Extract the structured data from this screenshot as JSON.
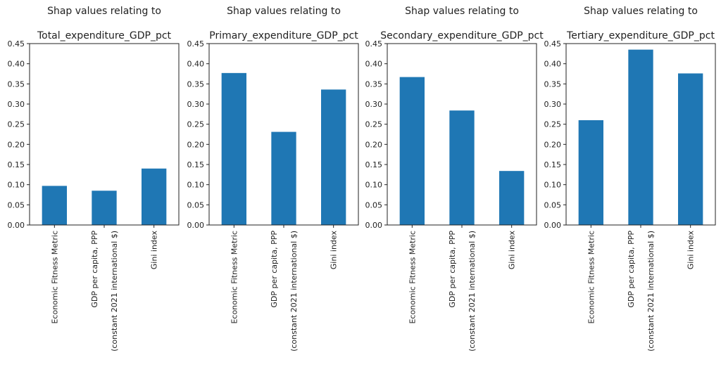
{
  "chart_data": [
    {
      "type": "bar",
      "title": [
        "Shap values relating to",
        "Total_expenditure_GDP_pct"
      ],
      "categories": [
        "Economic Fitness Metric",
        "GDP per capita, PPP\n(constant 2021 international $)",
        "Gini index"
      ],
      "values": [
        0.097,
        0.085,
        0.14
      ],
      "ylim": [
        0,
        0.45
      ],
      "yticks": [
        "0.00",
        "0.05",
        "0.10",
        "0.15",
        "0.20",
        "0.25",
        "0.30",
        "0.35",
        "0.40",
        "0.45"
      ],
      "xlabel": "",
      "ylabel": ""
    },
    {
      "type": "bar",
      "title": [
        "Shap values relating to",
        "Primary_expenditure_GDP_pct"
      ],
      "categories": [
        "Economic Fitness Metric",
        "GDP per capita, PPP\n(constant 2021 international $)",
        "Gini index"
      ],
      "values": [
        0.377,
        0.231,
        0.336
      ],
      "ylim": [
        0,
        0.45
      ],
      "yticks": [
        "0.00",
        "0.05",
        "0.10",
        "0.15",
        "0.20",
        "0.25",
        "0.30",
        "0.35",
        "0.40",
        "0.45"
      ],
      "xlabel": "",
      "ylabel": ""
    },
    {
      "type": "bar",
      "title": [
        "Shap values relating to",
        "Secondary_expenditure_GDP_pct"
      ],
      "categories": [
        "Economic Fitness Metric",
        "GDP per capita, PPP\n(constant 2021 international $)",
        "Gini index"
      ],
      "values": [
        0.367,
        0.284,
        0.134
      ],
      "ylim": [
        0,
        0.45
      ],
      "yticks": [
        "0.00",
        "0.05",
        "0.10",
        "0.15",
        "0.20",
        "0.25",
        "0.30",
        "0.35",
        "0.40",
        "0.45"
      ],
      "xlabel": "",
      "ylabel": ""
    },
    {
      "type": "bar",
      "title": [
        "Shap values relating to",
        "Tertiary_expenditure_GDP_pct"
      ],
      "categories": [
        "Economic Fitness Metric",
        "GDP per capita, PPP\n(constant 2021 international $)",
        "Gini index"
      ],
      "values": [
        0.26,
        0.435,
        0.376
      ],
      "ylim": [
        0,
        0.45
      ],
      "yticks": [
        "0.00",
        "0.05",
        "0.10",
        "0.15",
        "0.20",
        "0.25",
        "0.30",
        "0.35",
        "0.40",
        "0.45"
      ],
      "xlabel": "",
      "ylabel": ""
    }
  ],
  "colors": {
    "bar": "#1f77b4",
    "axis": "#222222"
  }
}
